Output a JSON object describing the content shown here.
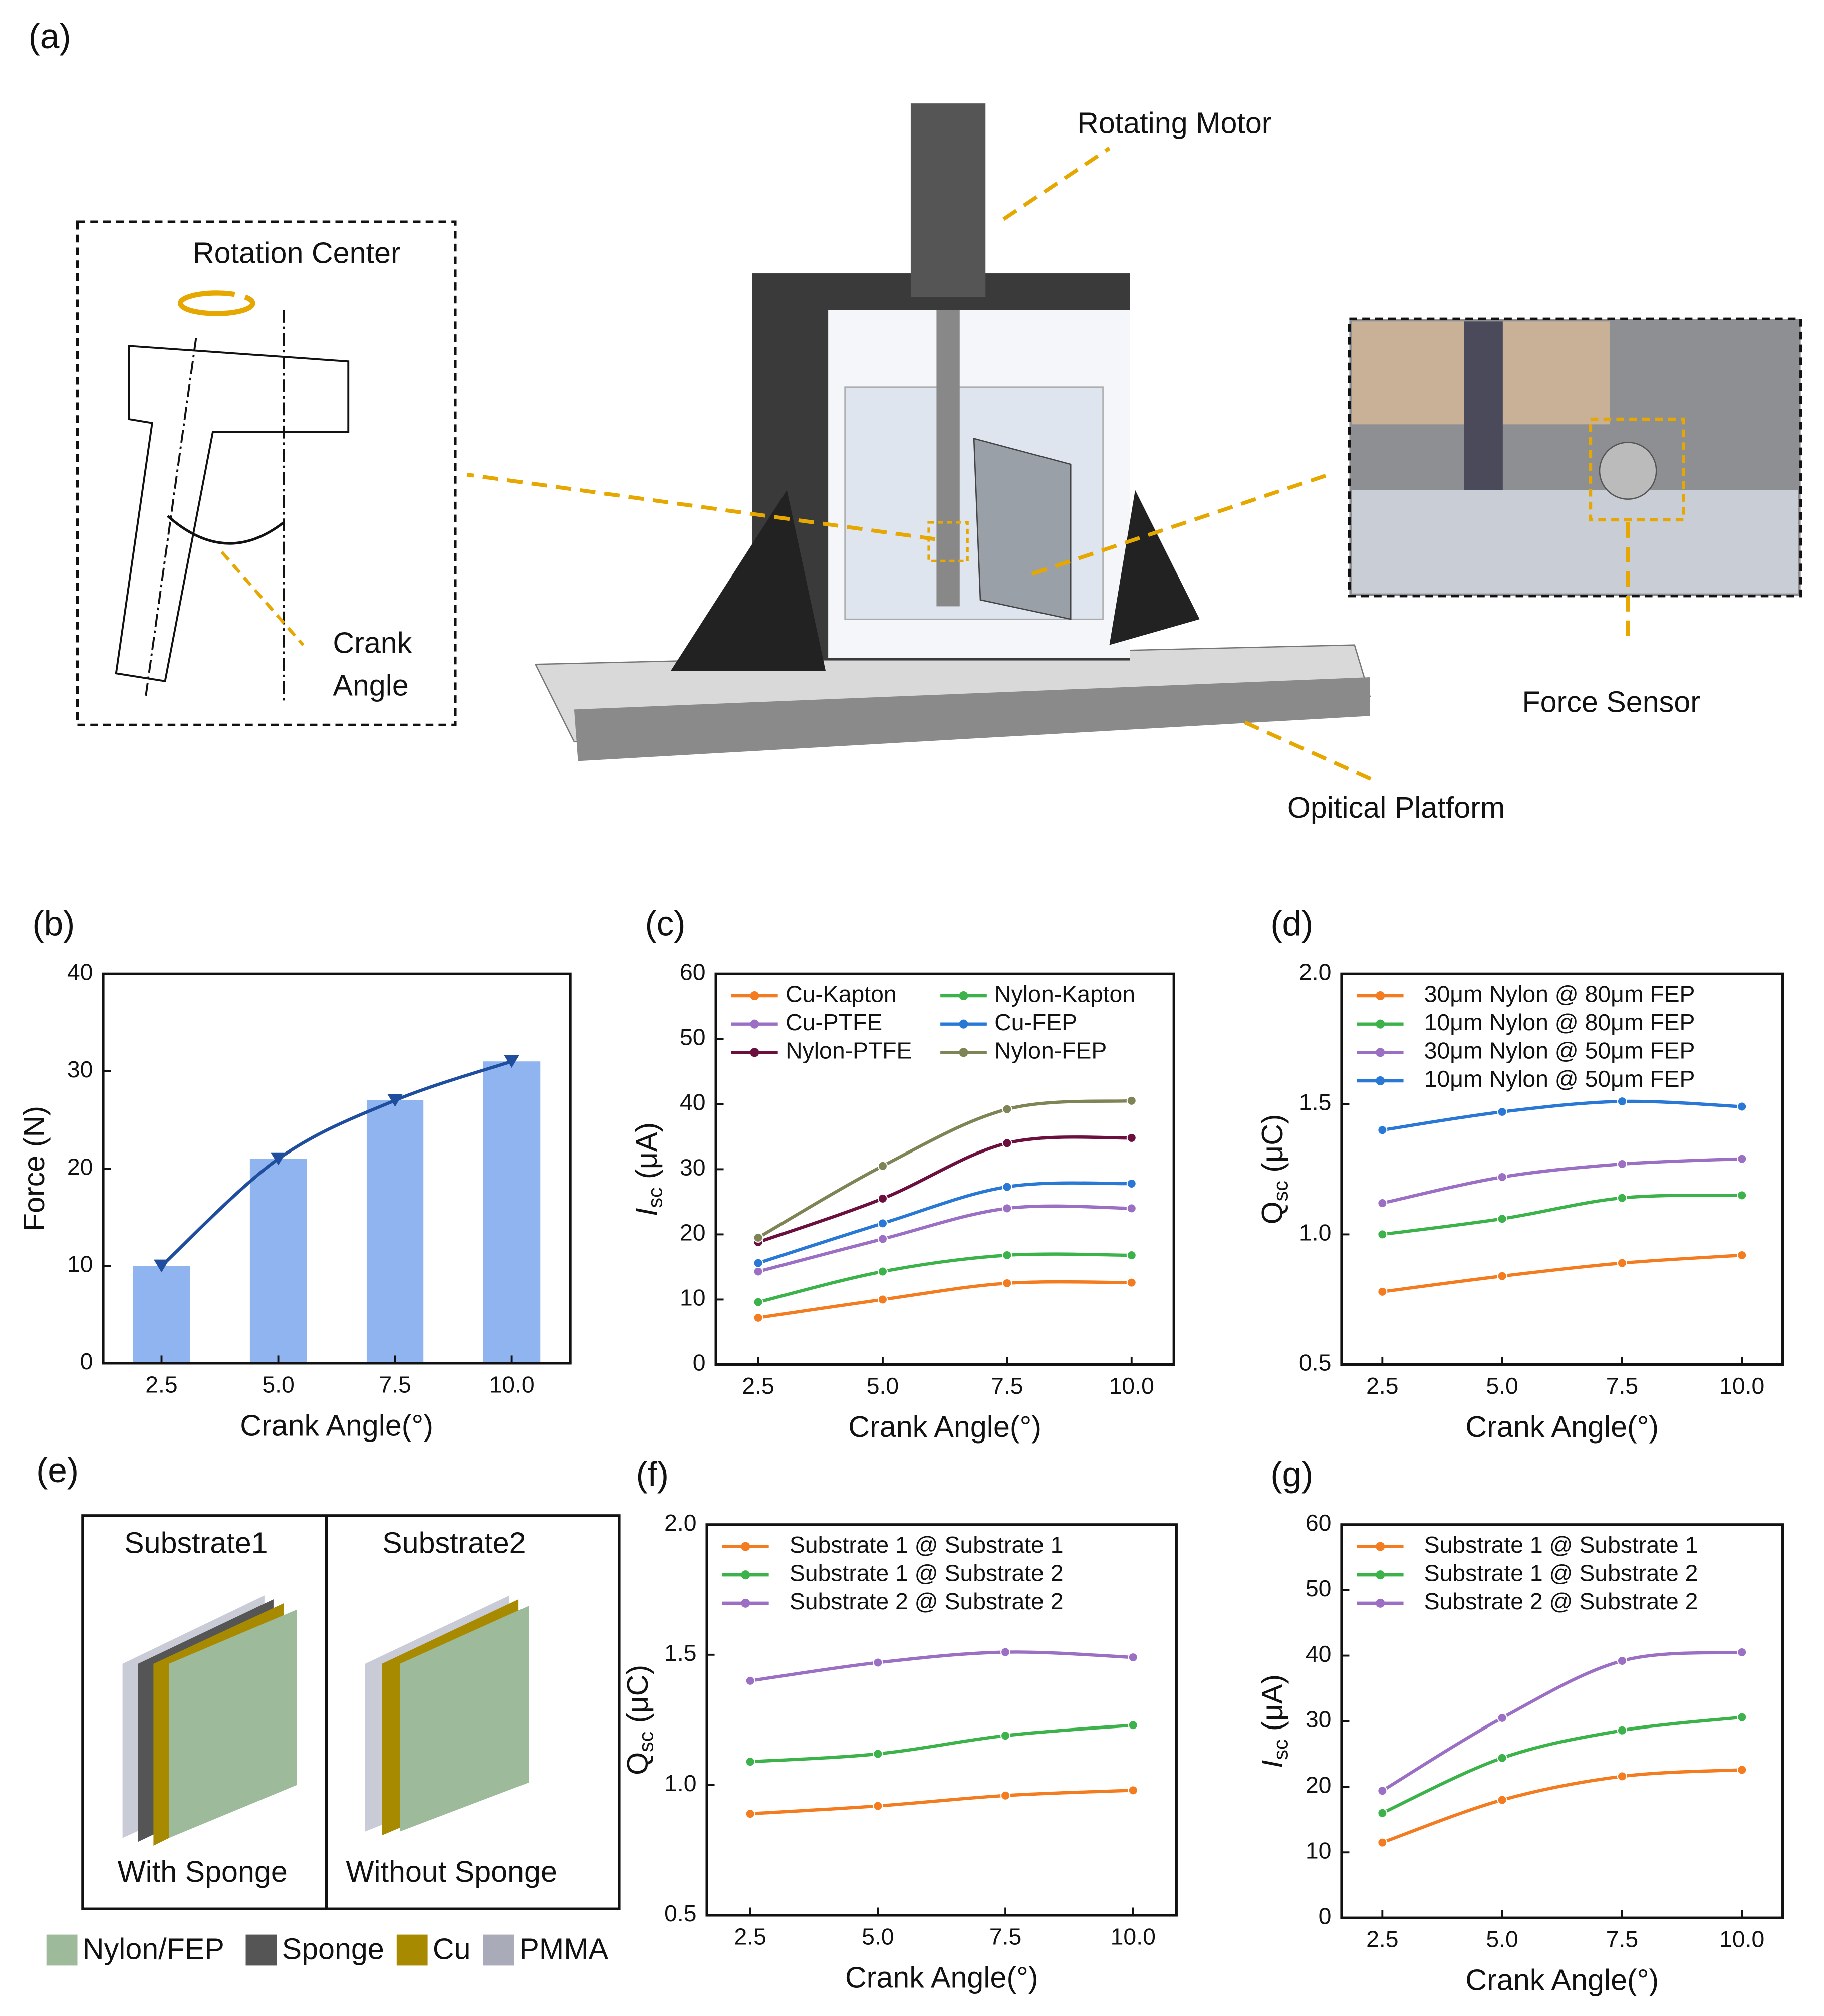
{
  "figure_a": {
    "panel": "(a)",
    "rotation_center": "Rotation Center",
    "crank_line1": "Crank",
    "crank_line2": "Angle",
    "rotating_motor": "Rotating Motor",
    "force_sensor": "Force Sensor",
    "optical_platform": "Opitical Platform"
  },
  "figure_e": {
    "panel": "(e)",
    "substrate1": "Substrate1",
    "substrate2": "Substrate2",
    "with_sponge": "With Sponge",
    "without_sponge": "Without Sponge",
    "legend": [
      {
        "name": "Nylon/FEP",
        "color": "#9dbb9a"
      },
      {
        "name": "Sponge",
        "color": "#555555"
      },
      {
        "name": "Cu",
        "color": "#a88a00"
      },
      {
        "name": "PMMA",
        "color": "#a9abb8"
      }
    ]
  },
  "chart_data": [
    {
      "type": "bar",
      "panel": "(b)",
      "xlabel": "Crank Angle(°)",
      "ylabel": {
        "main": "Force (N)"
      },
      "categories": [
        "2.5",
        "5.0",
        "7.5",
        "10.0"
      ],
      "values": [
        10,
        21,
        27,
        31
      ],
      "color": "#8fb4ef",
      "line_color": "#1f4e9f",
      "ylim": [
        0,
        40
      ],
      "yticks": [
        0,
        10,
        20,
        30,
        40
      ]
    },
    {
      "type": "line",
      "panel": "(c)",
      "xlabel": "Crank Angle(°)",
      "ylabel": {
        "main": "I",
        "sub": "sc",
        "unit": " (μA)"
      },
      "x": [
        2.5,
        5,
        7.5,
        10
      ],
      "xlim": [
        1.65,
        10.85
      ],
      "xticks": [
        2.5,
        {
          "value": 5,
          "label": "5.0"
        },
        7.5,
        {
          "value": 10,
          "label": "10.0"
        }
      ],
      "ylim": [
        0,
        60
      ],
      "yticks": [
        0,
        10,
        20,
        30,
        40,
        50,
        60
      ],
      "legend": "upper left",
      "series": [
        {
          "name": "Cu-Kapton",
          "color": "#f47c20",
          "values": [
            7.2,
            10,
            12.5,
            12.6
          ]
        },
        {
          "name": "Nylon-Kapton",
          "color": "#3cb34a",
          "values": [
            9.6,
            14.3,
            16.8,
            16.8
          ]
        },
        {
          "name": "Cu-PTFE",
          "color": "#9b6fc4",
          "values": [
            14.3,
            19.3,
            24,
            24
          ]
        },
        {
          "name": "Cu-FEP",
          "color": "#2a78d6",
          "values": [
            15.6,
            21.7,
            27.3,
            27.8
          ]
        },
        {
          "name": "Nylon-PTFE",
          "color": "#6b0f3e",
          "values": [
            18.8,
            25.5,
            34,
            34.8
          ]
        },
        {
          "name": "Nylon-FEP",
          "color": "#7f8456",
          "values": [
            19.5,
            30.5,
            39.2,
            40.5
          ]
        }
      ]
    },
    {
      "type": "line",
      "panel": "(d)",
      "xlabel": "Crank Angle(°)",
      "ylabel": {
        "main": "Q",
        "sub": "sc",
        "unit": " (μC)"
      },
      "x": [
        2.5,
        5,
        7.5,
        10
      ],
      "xlim": [
        1.65,
        10.85
      ],
      "xticks": [
        2.5,
        {
          "value": 5,
          "label": "5.0"
        },
        7.5,
        {
          "value": 10,
          "label": "10.0"
        }
      ],
      "ylim": [
        0.5,
        2.0
      ],
      "yticks": [
        0.5,
        {
          "value": 1.0,
          "label": "1.0"
        },
        1.5,
        {
          "value": 2.0,
          "label": "2.0"
        }
      ],
      "legend": "upper left",
      "series": [
        {
          "name": "30μm Nylon @ 80μm FEP",
          "color": "#f47c20",
          "values": [
            0.78,
            0.84,
            0.89,
            0.92
          ]
        },
        {
          "name": "10μm Nylon @ 80μm FEP",
          "color": "#3cb34a",
          "values": [
            1.0,
            1.06,
            1.14,
            1.15
          ]
        },
        {
          "name": "30μm Nylon @ 50μm FEP",
          "color": "#9b6fc4",
          "values": [
            1.12,
            1.22,
            1.27,
            1.29
          ]
        },
        {
          "name": "10μm Nylon @ 50μm FEP",
          "color": "#2a78d6",
          "values": [
            1.4,
            1.47,
            1.51,
            1.49
          ]
        }
      ]
    },
    {
      "type": "line",
      "panel": "(f)",
      "xlabel": "Crank Angle(°)",
      "ylabel": {
        "main": "Q",
        "sub": "sc",
        "unit": " (μC)"
      },
      "x": [
        2.5,
        5,
        7.5,
        10
      ],
      "xlim": [
        1.65,
        10.85
      ],
      "xticks": [
        2.5,
        {
          "value": 5,
          "label": "5.0"
        },
        7.5,
        {
          "value": 10,
          "label": "10.0"
        }
      ],
      "ylim": [
        0.5,
        2.0
      ],
      "yticks": [
        0.5,
        {
          "value": 1.0,
          "label": "1.0"
        },
        1.5,
        {
          "value": 2.0,
          "label": "2.0"
        }
      ],
      "legend": "upper left",
      "series": [
        {
          "name": "Substrate 1 @ Substrate 1",
          "color": "#f47c20",
          "values": [
            0.89,
            0.92,
            0.96,
            0.98
          ]
        },
        {
          "name": "Substrate 1 @ Substrate 2",
          "color": "#3cb34a",
          "values": [
            1.09,
            1.12,
            1.19,
            1.23
          ]
        },
        {
          "name": "Substrate 2 @ Substrate 2",
          "color": "#9b6fc4",
          "values": [
            1.4,
            1.47,
            1.51,
            1.49
          ]
        }
      ]
    },
    {
      "type": "line",
      "panel": "(g)",
      "xlabel": "Crank Angle(°)",
      "ylabel": {
        "main": "I",
        "sub": "sc",
        "unit": " (μA)"
      },
      "x": [
        2.5,
        5,
        7.5,
        10
      ],
      "xlim": [
        1.65,
        10.85
      ],
      "xticks": [
        2.5,
        {
          "value": 5,
          "label": "5.0"
        },
        7.5,
        {
          "value": 10,
          "label": "10.0"
        }
      ],
      "ylim": [
        0,
        60
      ],
      "yticks": [
        0,
        10,
        20,
        30,
        40,
        50,
        60
      ],
      "legend": "upper left",
      "series": [
        {
          "name": "Substrate 1 @ Substrate 1",
          "color": "#f47c20",
          "values": [
            11.5,
            18,
            21.6,
            22.6
          ]
        },
        {
          "name": "Substrate 1 @ Substrate 2",
          "color": "#3cb34a",
          "values": [
            16,
            24.4,
            28.6,
            30.6
          ]
        },
        {
          "name": "Substrate 2 @ Substrate 2",
          "color": "#9b6fc4",
          "values": [
            19.4,
            30.5,
            39.2,
            40.5
          ]
        }
      ]
    }
  ]
}
